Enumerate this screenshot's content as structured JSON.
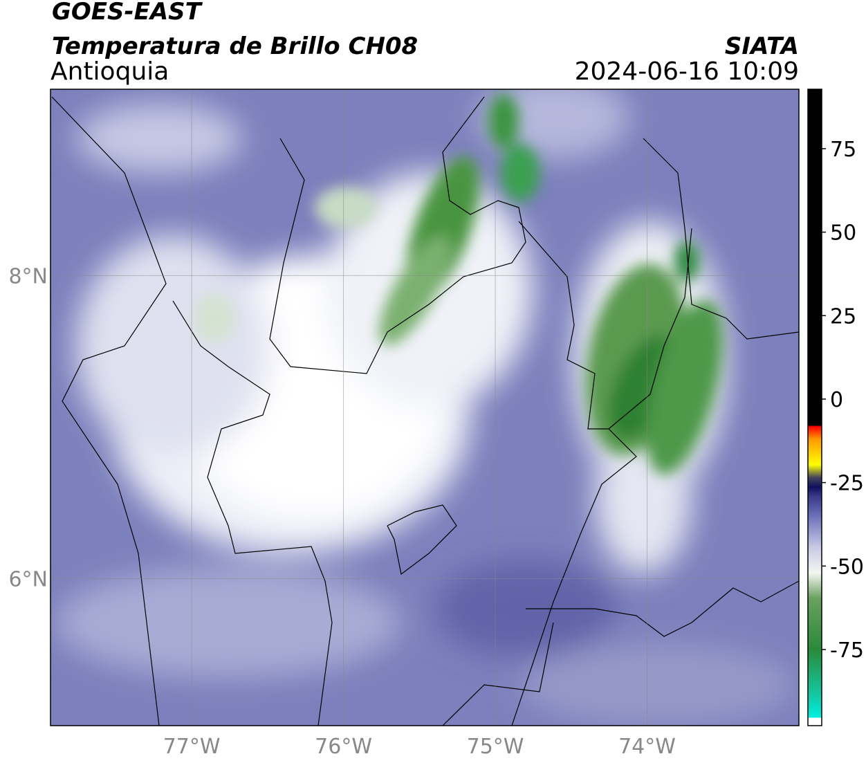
{
  "header": {
    "title": "GOES-EAST",
    "subtitle": "Temperatura de Brillo CH08",
    "region": "Antioquia",
    "source": "SIATA",
    "datetime": "2024-06-16 10:09"
  },
  "map": {
    "lonlim": [
      -77.93,
      -73.0
    ],
    "latlim": [
      5.03,
      9.23
    ],
    "lon_ticks": [
      {
        "value": -77,
        "label": "77°W"
      },
      {
        "value": -76,
        "label": "76°W"
      },
      {
        "value": -75,
        "label": "75°W"
      },
      {
        "value": -74,
        "label": "74°W"
      }
    ],
    "lat_ticks": [
      {
        "value": 8,
        "label": "8°N"
      },
      {
        "value": 6,
        "label": "6°N"
      }
    ]
  },
  "colorbar": {
    "lim": [
      -97.8,
      92.8
    ],
    "ticks": [
      75,
      50,
      25,
      0,
      -25,
      -50,
      -75
    ]
  }
}
